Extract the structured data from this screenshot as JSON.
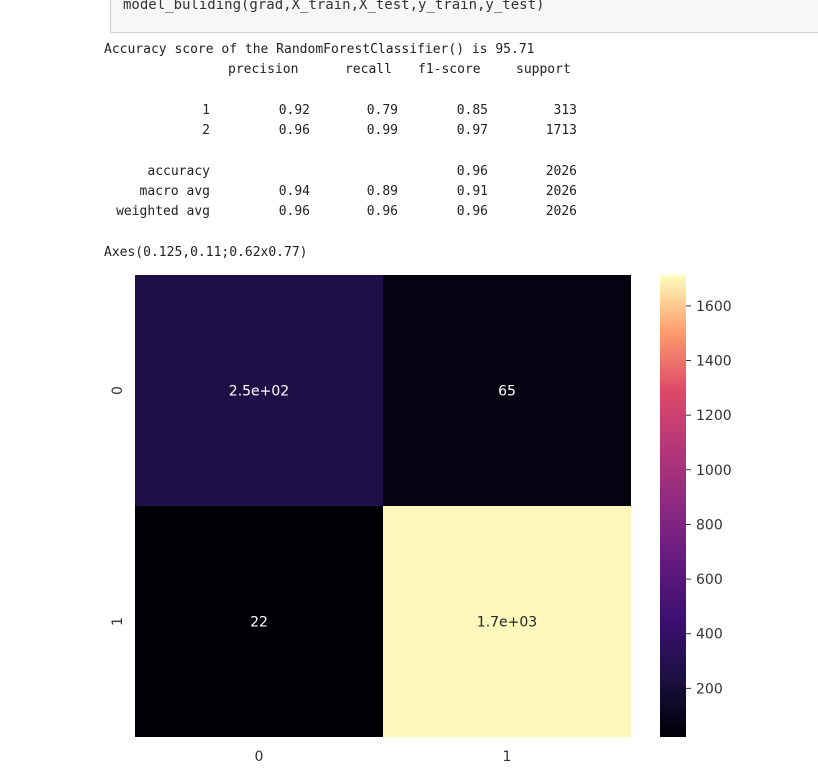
{
  "code_cell": {
    "source": "model_buliding(grad,X_train,X_test,y_train,y_test)"
  },
  "output": {
    "accuracy_line": "Accuracy score of the RandomForestClassifier() is 95.71",
    "report": {
      "headers": [
        "precision",
        "recall",
        "f1-score",
        "support"
      ],
      "class_rows": [
        {
          "label": "1",
          "precision": "0.92",
          "recall": "0.79",
          "f1": "0.85",
          "support": "313"
        },
        {
          "label": "2",
          "precision": "0.96",
          "recall": "0.99",
          "f1": "0.97",
          "support": "1713"
        }
      ],
      "summary_rows": [
        {
          "label": "accuracy",
          "precision": "",
          "recall": "",
          "f1": "0.96",
          "support": "2026"
        },
        {
          "label": "macro avg",
          "precision": "0.94",
          "recall": "0.89",
          "f1": "0.91",
          "support": "2026"
        },
        {
          "label": "weighted avg",
          "precision": "0.96",
          "recall": "0.96",
          "f1": "0.96",
          "support": "2026"
        }
      ]
    },
    "axes_repr": "Axes(0.125,0.11;0.62x0.77)"
  },
  "chart_data": {
    "type": "heatmap",
    "x_categories": [
      "0",
      "1"
    ],
    "y_categories": [
      "0",
      "1"
    ],
    "cells": [
      [
        {
          "value": 250,
          "label": "2.5e+02"
        },
        {
          "value": 65,
          "label": "65"
        }
      ],
      [
        {
          "value": 22,
          "label": "22"
        },
        {
          "value": 1700,
          "label": "1.7e+03"
        }
      ]
    ],
    "colormap": "magma",
    "colorbar": {
      "min": 22,
      "max": 1713,
      "ticks": [
        "200",
        "400",
        "600",
        "800",
        "1000",
        "1200",
        "1400",
        "1600"
      ]
    },
    "title": "",
    "xlabel": "",
    "ylabel": ""
  }
}
